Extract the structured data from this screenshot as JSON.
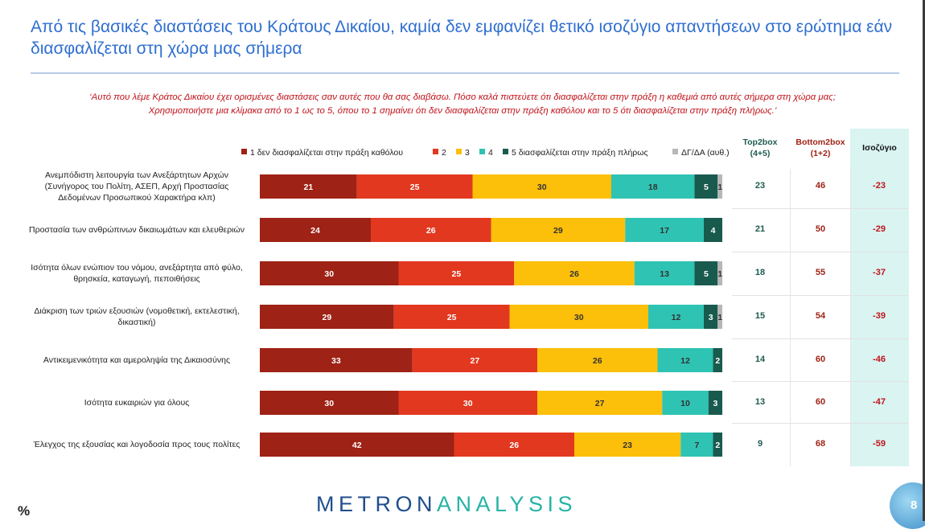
{
  "header": {
    "title": "Από τις βασικές διαστάσεις του Κράτους Δικαίου, καμία δεν εμφανίζει θετικό ισοζύγιο απαντήσεων στο ερώτημα εάν διασφαλίζεται στη χώρα μας σήμερα",
    "question_line1": "‘Αυτό που λέμε Κράτος Δικαίου έχει ορισμένες διαστάσεις σαν αυτές που θα σας διαβάσω. Πόσο καλά πιστεύετε ότι διασφαλίζεται στην πράξη η καθεμιά από αυτές σήμερα στη χώρα μας;",
    "question_line2": "Χρησιμοποιήστε μια κλίμακα από το 1 ως το 5, όπου το 1 σημαίνει ότι δεν διασφαλίζεται στην πράξη καθόλου και το 5 ότι διασφαλίζεται στην πράξη πλήρως.’"
  },
  "table": {
    "top2box_header": "Top2box (4+5)",
    "bottom2box_header": "Bottom2box (1+2)",
    "balance_header": "Ισοζύγιο",
    "top2box": [
      23,
      21,
      18,
      15,
      14,
      13,
      9
    ],
    "bottom2box": [
      46,
      50,
      55,
      54,
      60,
      60,
      68
    ],
    "balance": [
      -23,
      -29,
      -37,
      -39,
      -46,
      -47,
      -59
    ]
  },
  "colors": {
    "s1": "#9e2215",
    "s2": "#e2381f",
    "s3": "#fcbf0a",
    "s4": "#2fc3b3",
    "s5": "#185b4e",
    "dk": "#b7b7b7",
    "title": "#2f6fd0",
    "question": "#c0141b",
    "top2box": "#1d5b4f",
    "bottom2box": "#9e2215"
  },
  "chart_data": {
    "type": "bar",
    "orientation": "horizontal",
    "stacked": true,
    "categories": [
      "Ανεμπόδιστη λειτουργία των Ανεξάρτητων Αρχών (Συνήγορος του Πολίτη, ΑΣΕΠ, Αρχή Προστασίας Δεδομένων Προσωπικού Χαρακτήρα κλπ)",
      "Προστασία των ανθρώπινων δικαιωμάτων και ελευθεριών",
      "Ισότητα όλων ενώπιον του νόμου, ανεξάρτητα από φύλο, θρησκεία, καταγωγή, πεποιθήσεις",
      "Διάκριση των τριών εξουσιών (νομοθετική, εκτελεστική, δικαστική)",
      "Αντικειμενικότητα και αμεροληψία της Δικαιοσύνης",
      "Ισότητα ευκαιριών για όλους",
      "Έλεγχος της εξουσίας και λογοδοσία προς τους πολίτες"
    ],
    "series": [
      {
        "name": "1 δεν διασφαλίζεται στην πράξη καθόλου",
        "values": [
          21,
          24,
          30,
          29,
          33,
          30,
          42
        ]
      },
      {
        "name": "2",
        "values": [
          25,
          26,
          25,
          25,
          27,
          30,
          26
        ]
      },
      {
        "name": "3",
        "values": [
          30,
          29,
          26,
          30,
          26,
          27,
          23
        ]
      },
      {
        "name": "4",
        "values": [
          18,
          17,
          13,
          12,
          12,
          10,
          7
        ]
      },
      {
        "name": "5 διασφαλίζεται στην πράξη πλήρως",
        "values": [
          5,
          4,
          5,
          3,
          2,
          3,
          2
        ]
      },
      {
        "name": "ΔΓ/ΔΑ (αυθ.)",
        "values": [
          1,
          0,
          1,
          1,
          0,
          0,
          0
        ]
      }
    ],
    "unit": "%",
    "xlim": [
      0,
      100
    ],
    "legend": "top"
  },
  "footer": {
    "percent_sign": "%",
    "logo_a": "METRON",
    "logo_b": "ANALYSIS",
    "page_number": "8"
  }
}
